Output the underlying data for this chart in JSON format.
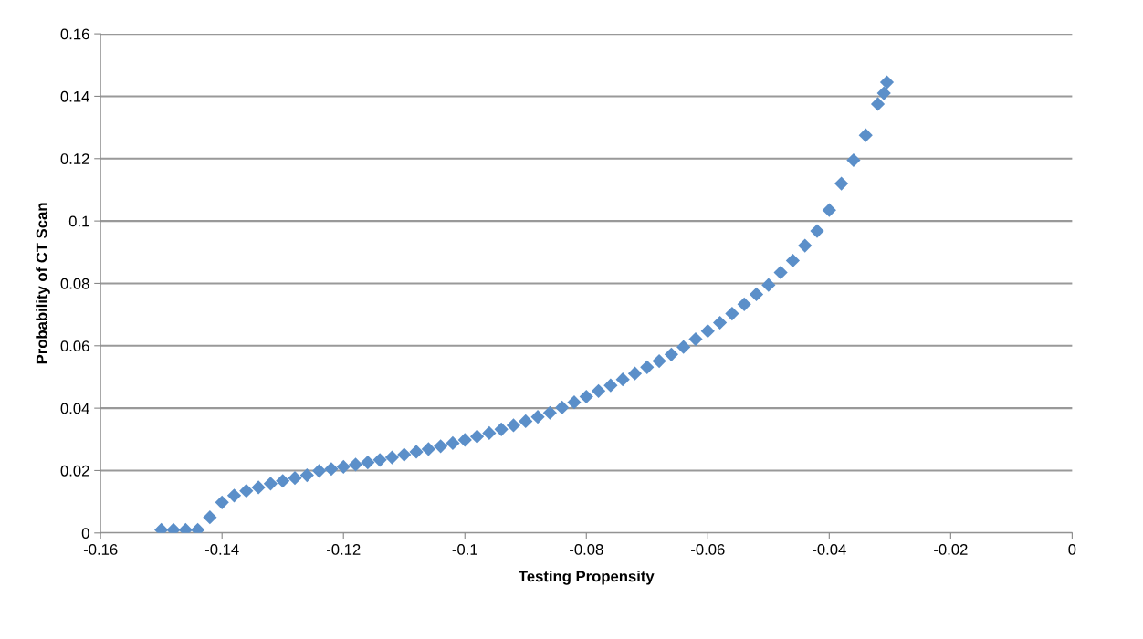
{
  "chart_data": {
    "type": "scatter",
    "xlabel": "Testing Propensity",
    "ylabel": "Probability of CT Scan",
    "x": [
      -0.15,
      -0.148,
      -0.146,
      -0.144,
      -0.142,
      -0.14,
      -0.138,
      -0.136,
      -0.134,
      -0.132,
      -0.13,
      -0.128,
      -0.126,
      -0.124,
      -0.122,
      -0.12,
      -0.118,
      -0.116,
      -0.114,
      -0.112,
      -0.11,
      -0.108,
      -0.106,
      -0.104,
      -0.102,
      -0.1,
      -0.098,
      -0.096,
      -0.094,
      -0.092,
      -0.09,
      -0.088,
      -0.086,
      -0.084,
      -0.082,
      -0.08,
      -0.078,
      -0.076,
      -0.074,
      -0.072,
      -0.07,
      -0.068,
      -0.066,
      -0.064,
      -0.062,
      -0.06,
      -0.058,
      -0.056,
      -0.054,
      -0.052,
      -0.05,
      -0.048,
      -0.046,
      -0.044,
      -0.042,
      -0.04,
      -0.038,
      -0.036,
      -0.034,
      -0.032,
      -0.031,
      -0.0305
    ],
    "series": [
      {
        "color": "#5b8fc9",
        "values": [
          0.001,
          0.001,
          0.001,
          0.001,
          0.005,
          0.0098,
          0.012,
          0.0135,
          0.0146,
          0.0158,
          0.0167,
          0.0176,
          0.0185,
          0.0199,
          0.0205,
          0.0212,
          0.0219,
          0.0226,
          0.0234,
          0.0242,
          0.0251,
          0.026,
          0.0269,
          0.0278,
          0.0288,
          0.0298,
          0.0309,
          0.032,
          0.0332,
          0.0345,
          0.0358,
          0.0372,
          0.0385,
          0.0402,
          0.0419,
          0.0437,
          0.0455,
          0.0473,
          0.0492,
          0.0511,
          0.0531,
          0.0551,
          0.0572,
          0.0596,
          0.0621,
          0.0647,
          0.0674,
          0.0703,
          0.0733,
          0.0765,
          0.0795,
          0.0835,
          0.0873,
          0.0921,
          0.0968,
          0.1035,
          0.112,
          0.1195,
          0.1275,
          0.1375,
          0.141,
          0.1445
        ]
      }
    ],
    "xlim": [
      -0.16,
      0
    ],
    "xticks": [
      -0.16,
      -0.14,
      -0.12,
      -0.1,
      -0.08,
      -0.06,
      -0.04,
      -0.02,
      0
    ],
    "ylim": [
      0,
      0.16
    ],
    "yticks": [
      0,
      0.02,
      0.04,
      0.06,
      0.08,
      0.1,
      0.12,
      0.14,
      0.16
    ],
    "grid": "y",
    "marker": "diamond",
    "legend": false
  }
}
